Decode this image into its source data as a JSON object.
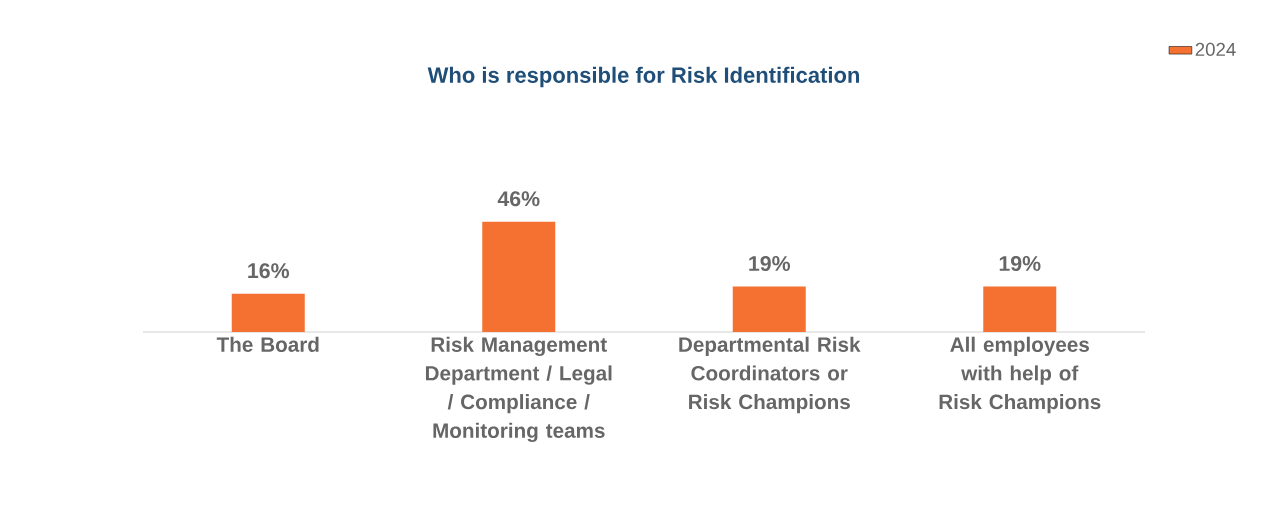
{
  "chart_data": {
    "type": "bar",
    "title": "Who is responsible for Risk Identification",
    "categories": [
      "The Board",
      "Risk Management Department / Legal / Compliance / Monitoring teams",
      "Departmental Risk Coordinators or Risk Champions",
      "All employees with help of Risk Champions"
    ],
    "series": [
      {
        "name": "2024",
        "color": "#f47131",
        "values": [
          16,
          46,
          19,
          19
        ],
        "value_labels": [
          "16%",
          "46%",
          "19%",
          "19%"
        ]
      }
    ],
    "legend": "top right"
  }
}
